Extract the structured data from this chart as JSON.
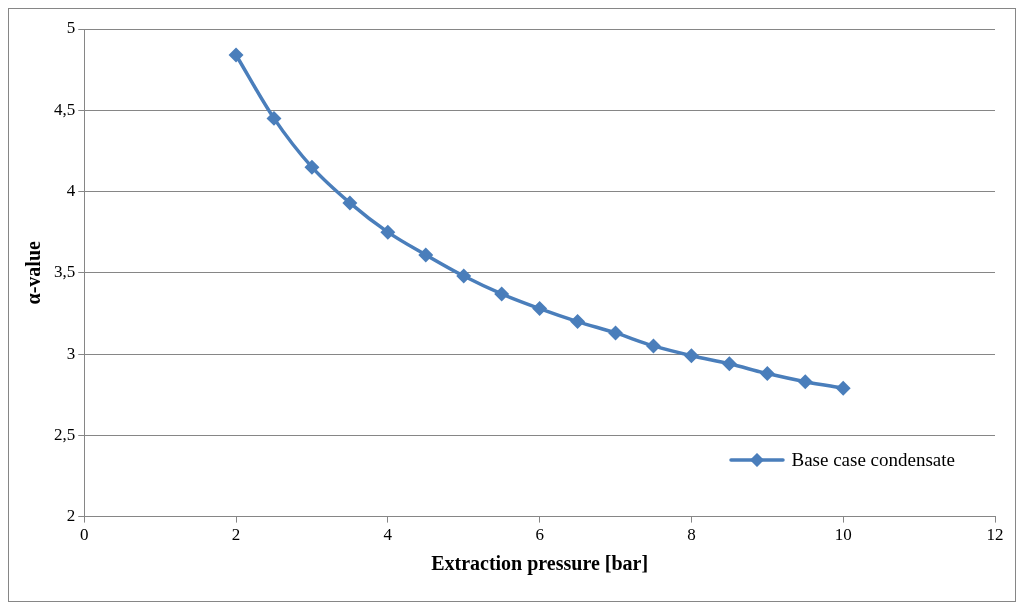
{
  "chart_data": {
    "type": "line",
    "xlabel": "Extraction pressure [bar]",
    "ylabel": "α-value",
    "x": [
      2,
      2.5,
      3,
      3.5,
      4,
      4.5,
      5,
      5.5,
      6,
      6.5,
      7,
      7.5,
      8,
      8.5,
      9,
      9.5,
      10
    ],
    "series": [
      {
        "name": "Base case condensate",
        "color": "#4a7ebb",
        "values": [
          4.84,
          4.45,
          4.15,
          3.93,
          3.75,
          3.61,
          3.48,
          3.37,
          3.28,
          3.2,
          3.13,
          3.05,
          2.99,
          2.94,
          2.88,
          2.83,
          2.79
        ]
      }
    ],
    "xlim": [
      0,
      12
    ],
    "xticks": [
      0,
      2,
      4,
      6,
      8,
      10,
      12
    ],
    "ylim": [
      2,
      5
    ],
    "yticks": [
      2,
      {
        "value": 2.5,
        "label": "2,5"
      },
      3,
      {
        "value": 3.5,
        "label": "3,5"
      },
      4,
      {
        "value": 4.5,
        "label": "4,5"
      },
      5
    ],
    "grid": "y",
    "legend": "bottom right",
    "marker": "diamond",
    "line_style": "solid"
  }
}
